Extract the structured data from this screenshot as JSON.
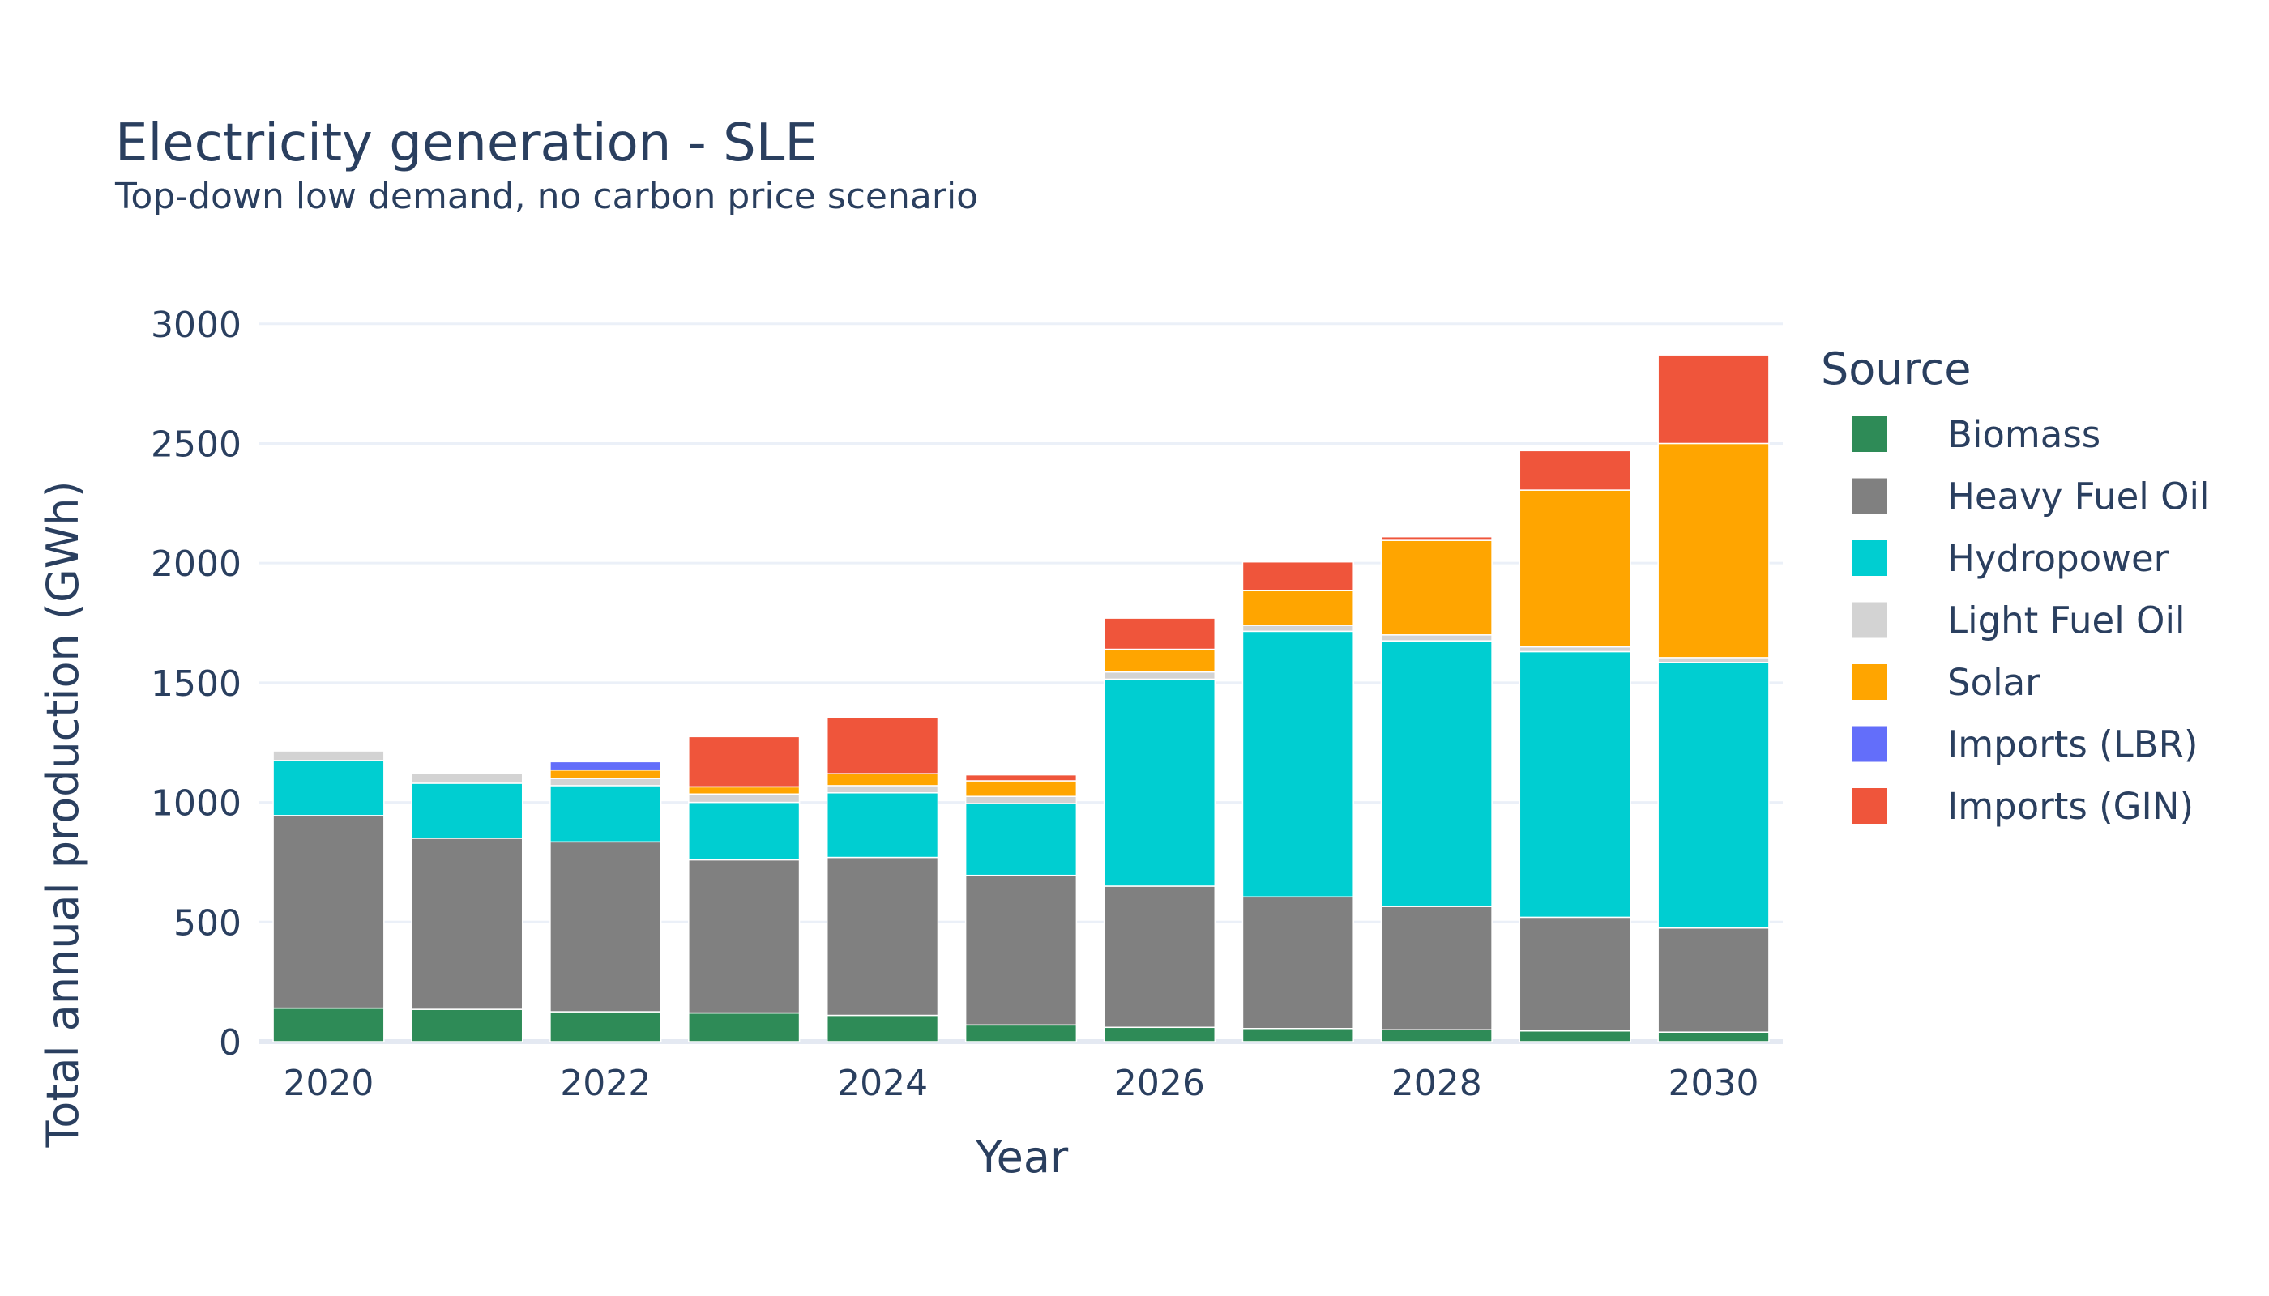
{
  "chart_data": {
    "type": "bar",
    "stacked": true,
    "title": "Electricity generation - SLE",
    "subtitle": "Top-down low demand, no carbon price scenario",
    "xlabel": "Year",
    "ylabel": "Total annual production (GWh)",
    "ylim": [
      0,
      3050
    ],
    "yticks": [
      0,
      500,
      1000,
      1500,
      2000,
      2500,
      3000
    ],
    "xticks": [
      "2020",
      "2022",
      "2024",
      "2026",
      "2028",
      "2030"
    ],
    "grid": true,
    "legend_title": "Source",
    "legend_position": "right",
    "categories": [
      "2020",
      "2021",
      "2022",
      "2023",
      "2024",
      "2025",
      "2026",
      "2027",
      "2028",
      "2029",
      "2030"
    ],
    "series": [
      {
        "name": "Biomass",
        "color": "#2e8b57",
        "values": [
          140,
          135,
          125,
          120,
          110,
          70,
          60,
          55,
          50,
          45,
          40
        ]
      },
      {
        "name": "Heavy Fuel Oil",
        "color": "#808080",
        "values": [
          805,
          715,
          710,
          640,
          660,
          625,
          590,
          550,
          515,
          475,
          435
        ]
      },
      {
        "name": "Hydropower",
        "color": "#00ced1",
        "values": [
          230,
          230,
          235,
          240,
          270,
          300,
          865,
          1110,
          1110,
          1110,
          1110
        ]
      },
      {
        "name": "Light Fuel Oil",
        "color": "#d3d3d3",
        "values": [
          40,
          40,
          30,
          35,
          30,
          30,
          30,
          25,
          25,
          20,
          20
        ]
      },
      {
        "name": "Solar",
        "color": "#ffa500",
        "values": [
          0,
          0,
          35,
          30,
          50,
          65,
          95,
          145,
          395,
          655,
          895
        ]
      },
      {
        "name": "Imports (LBR)",
        "color": "#636efa",
        "values": [
          0,
          0,
          35,
          0,
          0,
          0,
          0,
          0,
          0,
          0,
          0
        ]
      },
      {
        "name": "Imports (GIN)",
        "color": "#ef553b",
        "values": [
          0,
          0,
          0,
          210,
          235,
          25,
          130,
          120,
          15,
          165,
          370
        ]
      }
    ]
  }
}
